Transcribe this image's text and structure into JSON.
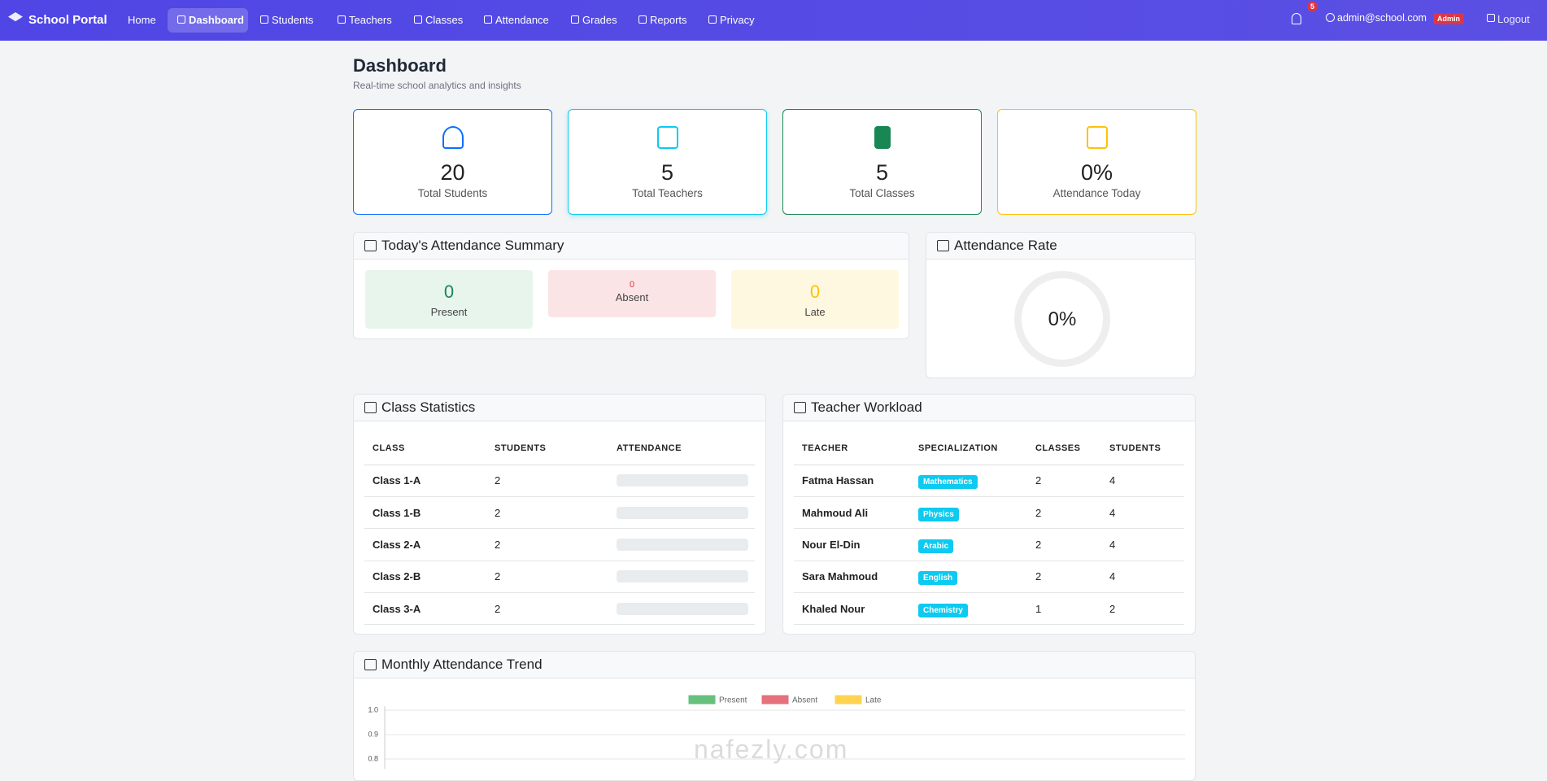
{
  "nav": {
    "brand": "School Portal",
    "links": [
      "Home",
      "Dashboard",
      "Students",
      "Teachers",
      "Classes",
      "Attendance",
      "Grades",
      "Reports",
      "Privacy"
    ],
    "notifications": 5,
    "user": "admin@school.com",
    "role": "Admin",
    "logout": "Logout"
  },
  "header": {
    "title": "Dashboard",
    "subtitle": "Real-time school analytics and insights"
  },
  "stats": [
    {
      "value": 20,
      "label": "Total Students"
    },
    {
      "value": 5,
      "label": "Total Teachers"
    },
    {
      "value": 5,
      "label": "Total Classes"
    },
    {
      "value": "0%",
      "label": "Attendance Today"
    }
  ],
  "attendance_summary": {
    "title": "Today's Attendance Summary",
    "items": [
      {
        "value": 0,
        "label": "Present"
      },
      {
        "value": 0,
        "label": "Absent"
      },
      {
        "value": 0,
        "label": "Late"
      }
    ]
  },
  "attendance_rate": {
    "title": "Attendance Rate",
    "value": "0%"
  },
  "class_statistics": {
    "title": "Class Statistics",
    "columns": [
      "CLASS",
      "STUDENTS",
      "ATTENDANCE"
    ],
    "rows": [
      [
        "Class 1-A",
        2
      ],
      [
        "Class 1-B",
        2
      ],
      [
        "Class 2-A",
        2
      ],
      [
        "Class 2-B",
        2
      ],
      [
        "Class 3-A",
        2
      ]
    ]
  },
  "teacher_workload": {
    "title": "Teacher Workload",
    "columns": [
      "TEACHER",
      "SPECIALIZATION",
      "CLASSES",
      "STUDENTS"
    ],
    "rows": [
      [
        "Fatma Hassan",
        "Mathematics",
        2,
        4
      ],
      [
        "Mahmoud Ali",
        "Physics",
        2,
        4
      ],
      [
        "Nour El-Din",
        "Arabic",
        2,
        4
      ],
      [
        "Sara Mahmoud",
        "English",
        2,
        4
      ],
      [
        "Khaled Nour",
        "Chemistry",
        1,
        2
      ]
    ]
  },
  "chart_data": {
    "type": "line",
    "title": "Monthly Attendance Trend",
    "series": [
      {
        "name": "Present",
        "color": "#28a745"
      },
      {
        "name": "Absent",
        "color": "#dc3545"
      },
      {
        "name": "Late",
        "color": "#ffc107"
      }
    ],
    "ylim": [
      0,
      1
    ],
    "yticks": [
      {
        "value": 1,
        "label": "1.0"
      },
      {
        "value": 0.9,
        "label": "0.9"
      },
      {
        "value": 0.8,
        "label": "0.8"
      }
    ],
    "grid": true
  },
  "watermark": "nafezly.com"
}
